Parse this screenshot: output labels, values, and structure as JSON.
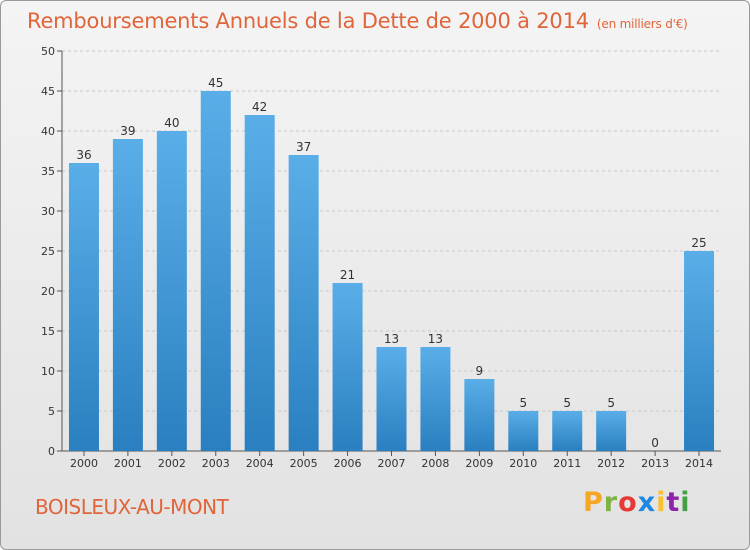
{
  "title": "Remboursements Annuels de la Dette de 2000 à 2014",
  "unit": "(en milliers d'€)",
  "commune": "BOISLEUX-AU-MONT",
  "logo": {
    "letters": [
      "P",
      "r",
      "o",
      "x",
      "i",
      "t",
      "i"
    ],
    "colors": [
      "#f5a623",
      "#7cb342",
      "#e53935",
      "#1e88e5",
      "#fbc02d",
      "#8e24aa",
      "#43a047"
    ]
  },
  "colors": {
    "bar_light": "#5aaee8",
    "bar_dark": "#2a7fc0",
    "accent": "#e0653a"
  },
  "chart_data": {
    "type": "bar",
    "title": "Remboursements Annuels de la Dette de 2000 à 2014",
    "categories": [
      "2000",
      "2001",
      "2002",
      "2003",
      "2004",
      "2005",
      "2006",
      "2007",
      "2008",
      "2009",
      "2010",
      "2011",
      "2012",
      "2013",
      "2014"
    ],
    "values": [
      36,
      39,
      40,
      45,
      42,
      37,
      21,
      13,
      13,
      9,
      5,
      5,
      5,
      0,
      25
    ],
    "ylim": [
      0,
      50
    ],
    "yticks": [
      0,
      5,
      10,
      15,
      20,
      25,
      30,
      35,
      40,
      45,
      50
    ],
    "grid": true,
    "xlabel": "",
    "ylabel": ""
  }
}
